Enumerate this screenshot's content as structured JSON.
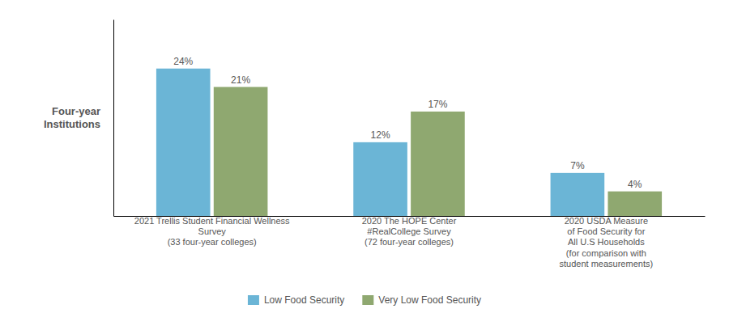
{
  "chart_data": {
    "type": "bar",
    "y_label": "Four-year\nInstitutions",
    "categories": [
      "2021 Trellis Student Financial Wellness\nSurvey\n(33 four-year colleges)",
      "2020 The HOPE Center\n#RealCollege Survey\n(72 four-year colleges)",
      "2020 USDA Measure\nof Food Security for\nAll U.S Households\n(for comparison with\nstudent measurements)"
    ],
    "series": [
      {
        "name": "Low Food Security",
        "color": "#6BB5D6",
        "values": [
          24,
          12,
          7
        ],
        "value_labels": [
          "24%",
          "12%",
          "7%"
        ]
      },
      {
        "name": "Very Low Food Security",
        "color": "#8FA870",
        "values": [
          21,
          17,
          4
        ],
        "value_labels": [
          "21%",
          "17%",
          "4%"
        ]
      }
    ],
    "ylim": [
      0,
      32
    ],
    "data_labels": true,
    "tick_labels": "x",
    "grid": false,
    "legend": "bottom"
  }
}
